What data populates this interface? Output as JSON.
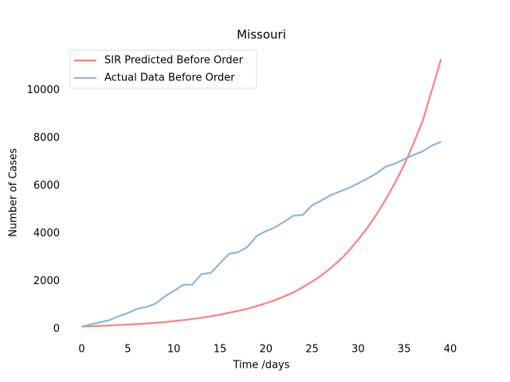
{
  "chart_data": {
    "type": "line",
    "title": "Missouri",
    "xlabel": "Time /days",
    "ylabel": "Number of Cases",
    "x": [
      0,
      1,
      2,
      3,
      4,
      5,
      6,
      7,
      8,
      9,
      10,
      11,
      12,
      13,
      14,
      15,
      16,
      17,
      18,
      19,
      20,
      21,
      22,
      23,
      24,
      25,
      26,
      27,
      28,
      29,
      30,
      31,
      32,
      33,
      34,
      35,
      36,
      37,
      38,
      39
    ],
    "series": [
      {
        "name": "SIR Predicted Before Order",
        "color": "#ff8080",
        "values": [
          100,
          115,
          130,
          145,
          165,
          185,
          205,
          230,
          260,
          290,
          330,
          370,
          420,
          470,
          530,
          600,
          680,
          760,
          850,
          960,
          1080,
          1210,
          1370,
          1540,
          1750,
          1980,
          2240,
          2540,
          2880,
          3280,
          3740,
          4240,
          4800,
          5430,
          6120,
          6880,
          7760,
          8700,
          10000,
          11300
        ]
      },
      {
        "name": "Actual Data Before Order",
        "color": "#8cb8dc",
        "values": [
          100,
          200,
          280,
          370,
          530,
          670,
          840,
          920,
          1060,
          1360,
          1600,
          1850,
          1860,
          2300,
          2350,
          2750,
          3150,
          3220,
          3440,
          3900,
          4100,
          4260,
          4500,
          4750,
          4780,
          5180,
          5380,
          5600,
          5760,
          5910,
          6100,
          6300,
          6520,
          6800,
          6930,
          7110,
          7290,
          7440,
          7680,
          7840
        ]
      }
    ],
    "xlim": [
      -1.95,
      40.95
    ],
    "xticks": [
      0,
      5,
      10,
      15,
      20,
      25,
      30,
      35,
      40
    ],
    "ylim": [
      -460,
      11860
    ],
    "yticks": [
      0,
      2000,
      4000,
      6000,
      8000,
      10000
    ],
    "legend": "upper left"
  }
}
